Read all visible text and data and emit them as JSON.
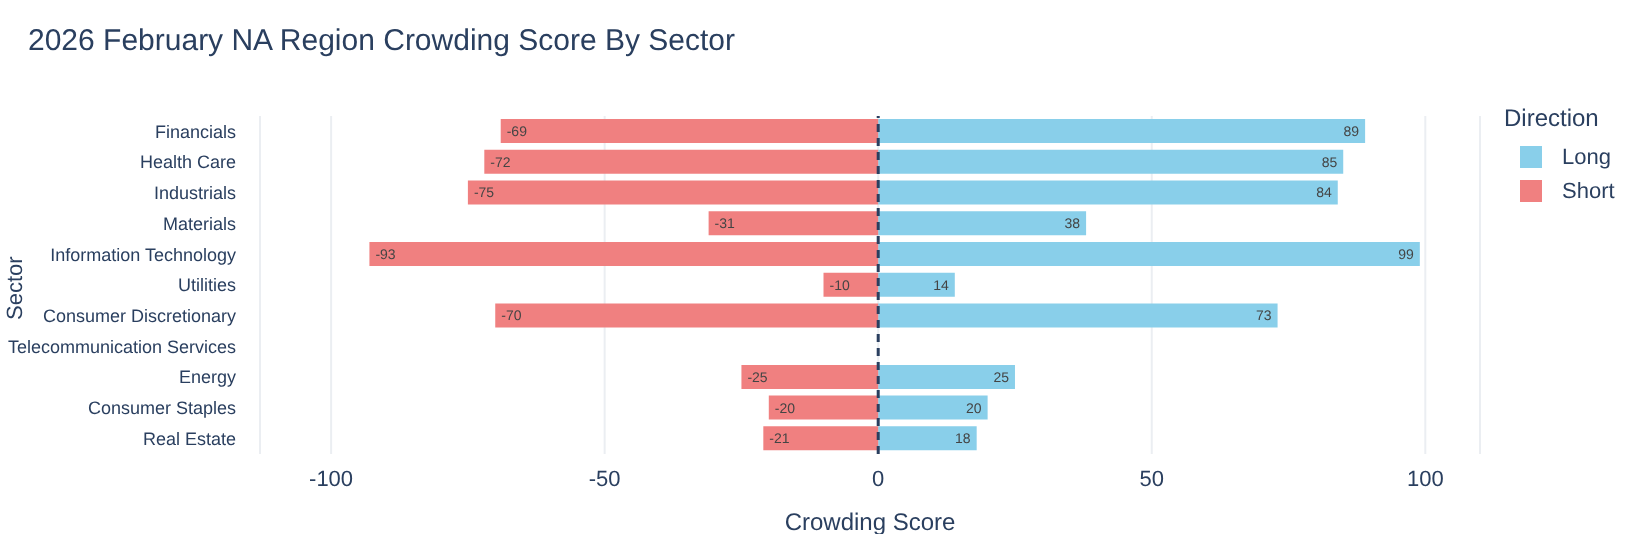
{
  "chart_data": {
    "type": "bar",
    "title": "2026 February NA Region Crowding Score By Sector",
    "xlabel": "Crowding Score",
    "ylabel": "Sector",
    "legend_title": "Direction",
    "orientation": "horizontal",
    "stacked": true,
    "categories": [
      "Financials",
      "Health Care",
      "Industrials",
      "Materials",
      "Information Technology",
      "Utilities",
      "Consumer Discretionary",
      "Telecommunication Services",
      "Energy",
      "Consumer Staples",
      "Real Estate"
    ],
    "series": [
      {
        "name": "Long",
        "color": "#89cfea",
        "values": [
          89,
          85,
          84,
          38,
          99,
          14,
          73,
          null,
          25,
          20,
          18
        ]
      },
      {
        "name": "Short",
        "color": "#f08080",
        "values": [
          -69,
          -72,
          -75,
          -31,
          -93,
          -10,
          -70,
          null,
          -25,
          -20,
          -21
        ]
      }
    ],
    "xlim": [
      -113,
      110
    ],
    "xticks": [
      -100,
      -50,
      0,
      50,
      100
    ],
    "grid": "x",
    "legend": "right",
    "data_labels": true,
    "ref_lines": [
      {
        "axis": "x",
        "value": 0,
        "color": "#2a3f5f",
        "line_style": "dashed"
      }
    ]
  }
}
